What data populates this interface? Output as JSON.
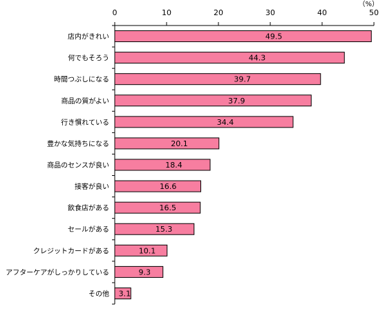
{
  "chart_data": {
    "type": "bar",
    "orientation": "horizontal",
    "title": "",
    "xlabel": "",
    "ylabel": "",
    "unit": "（%）",
    "xlim": [
      0,
      50
    ],
    "ticks": [
      0,
      10,
      20,
      30,
      40,
      50
    ],
    "tick_labels": [
      "0",
      "10",
      "20",
      "30",
      "40",
      "50"
    ],
    "grid": false,
    "legend": "none",
    "categories": [
      "店内がきれい",
      "何でもそろう",
      "時間つぶしになる",
      "商品の質がよい",
      "行き慣れている",
      "豊かな気持ちになる",
      "商品のセンスが良い",
      "接客が良い",
      "飲食店がある",
      "セールがある",
      "クレジットカードがある",
      "アフターケアがしっかりしている",
      "その他"
    ],
    "values": [
      49.5,
      44.3,
      39.7,
      37.9,
      34.4,
      20.1,
      18.4,
      16.6,
      16.5,
      15.3,
      10.1,
      9.3,
      3.1
    ],
    "value_labels": [
      "49.5",
      "44.3",
      "39.7",
      "37.9",
      "34.4",
      "20.1",
      "18.4",
      "16.6",
      "16.5",
      "15.3",
      "10.1",
      "9.3",
      "3.1"
    ],
    "colors": {
      "bar_fill": "#f77ea0",
      "bar_stroke": "#000000",
      "axis": "#000000"
    }
  }
}
